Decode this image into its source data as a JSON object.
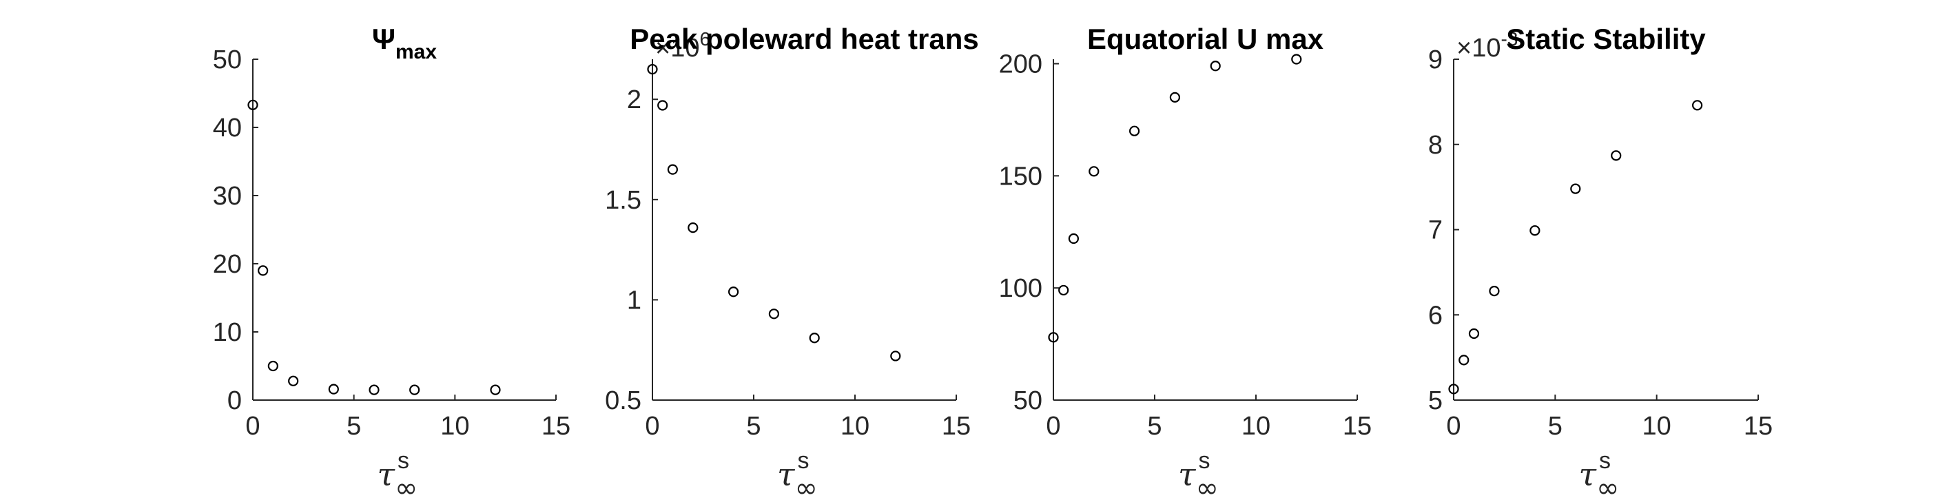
{
  "chart_data": [
    {
      "type": "scatter",
      "title": "Ψ",
      "title_subscript": "max",
      "x": [
        0,
        0.5,
        1,
        2,
        4,
        6,
        8,
        12
      ],
      "y": [
        43.3,
        19.0,
        5.0,
        2.8,
        1.6,
        1.5,
        1.5,
        1.5
      ],
      "xlim": [
        0,
        15
      ],
      "ylim": [
        0,
        50
      ],
      "xticks": [
        0,
        5,
        10,
        15
      ],
      "yticks": [
        0,
        10,
        20,
        30,
        40,
        50
      ],
      "xtick_labels": [
        "0",
        "5",
        "10",
        "15"
      ],
      "ytick_labels": [
        "0",
        "10",
        "20",
        "30",
        "40",
        "50"
      ],
      "xlabel": {
        "base": "τ",
        "superscript": "s",
        "subscript": "∞"
      },
      "marker": "circle",
      "grid": false
    },
    {
      "type": "scatter",
      "title": "Peak poleward heat trans",
      "multiplier": {
        "base": "×10",
        "exponent": "6"
      },
      "x": [
        0,
        0.5,
        1,
        2,
        4,
        6,
        8,
        12
      ],
      "y": [
        2.15,
        1.97,
        1.65,
        1.36,
        1.04,
        0.93,
        0.81,
        0.72
      ],
      "xlim": [
        0,
        15
      ],
      "ylim": [
        0.5,
        2.2
      ],
      "xticks": [
        0,
        5,
        10,
        15
      ],
      "yticks": [
        0.5,
        1,
        1.5,
        2
      ],
      "xtick_labels": [
        "0",
        "5",
        "10",
        "15"
      ],
      "ytick_labels": [
        "0.5",
        "1",
        "1.5",
        "2"
      ],
      "xlabel": {
        "base": "τ",
        "superscript": "s",
        "subscript": "∞"
      },
      "marker": "circle",
      "grid": false
    },
    {
      "type": "scatter",
      "title": "Equatorial U max",
      "x": [
        0,
        0.5,
        1,
        2,
        4,
        6,
        8,
        12
      ],
      "y": [
        78,
        99,
        122,
        152,
        170,
        185,
        199,
        202
      ],
      "xlim": [
        0,
        15
      ],
      "ylim": [
        50,
        202
      ],
      "xticks": [
        0,
        5,
        10,
        15
      ],
      "yticks": [
        50,
        100,
        150,
        200
      ],
      "xtick_labels": [
        "0",
        "5",
        "10",
        "15"
      ],
      "ytick_labels": [
        "50",
        "100",
        "150",
        "200"
      ],
      "xlabel": {
        "base": "τ",
        "superscript": "s",
        "subscript": "∞"
      },
      "marker": "circle",
      "grid": false
    },
    {
      "type": "scatter",
      "title": "Static Stability",
      "multiplier": {
        "base": "×10",
        "exponent": "-3"
      },
      "x": [
        0,
        0.5,
        1,
        2,
        4,
        6,
        8,
        12
      ],
      "y": [
        5.13,
        5.47,
        5.78,
        6.28,
        6.99,
        7.48,
        7.87,
        8.46
      ],
      "xlim": [
        0,
        15
      ],
      "ylim": [
        5,
        9
      ],
      "xticks": [
        0,
        5,
        10,
        15
      ],
      "yticks": [
        5,
        6,
        7,
        8,
        9
      ],
      "xtick_labels": [
        "0",
        "5",
        "10",
        "15"
      ],
      "ytick_labels": [
        "5",
        "6",
        "7",
        "8",
        "9"
      ],
      "xlabel": {
        "base": "τ",
        "superscript": "s",
        "subscript": "∞"
      },
      "marker": "circle",
      "grid": false
    }
  ]
}
